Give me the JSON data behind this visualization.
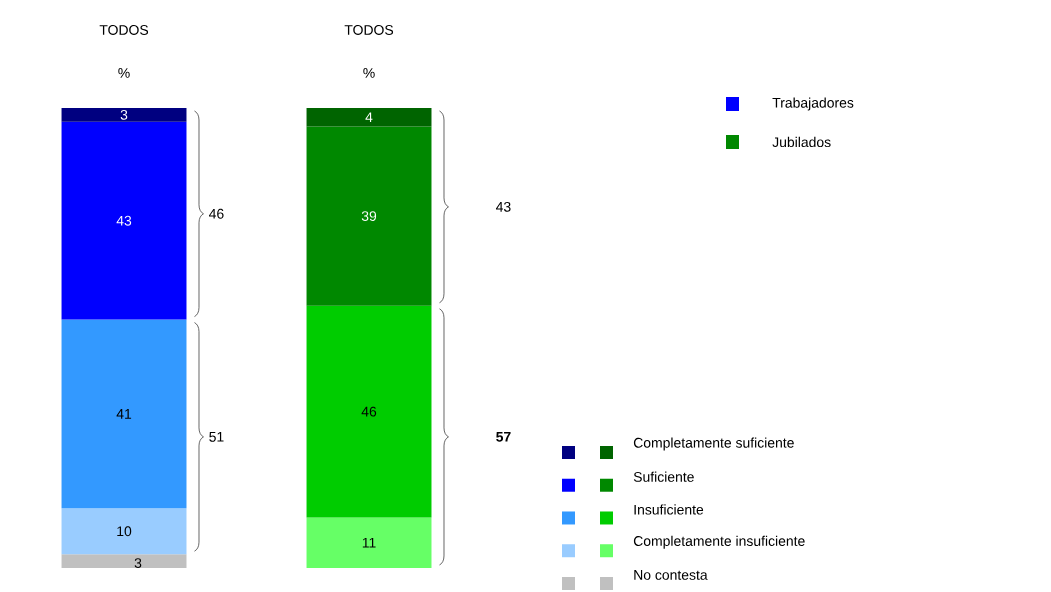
{
  "chart_data": {
    "type": "bar",
    "stacked": true,
    "data_labels": true,
    "legend": "bottom right",
    "categories": [
      "TODOS",
      "TODOS"
    ],
    "series": [
      {
        "name": "No contesta",
        "colors": [
          "#c0c0c0",
          "#c0c0c0"
        ],
        "values": [
          3,
          null
        ]
      },
      {
        "name": "Completamente insuficiente",
        "colors": [
          "#99ccff",
          "#66ff66"
        ],
        "values": [
          10,
          11
        ]
      },
      {
        "name": "Insuficiente",
        "colors": [
          "#3399ff",
          "#00cc00"
        ],
        "values": [
          41,
          46
        ]
      },
      {
        "name": "Suficiente",
        "colors": [
          "#0000ff",
          "#008800"
        ],
        "values": [
          43,
          39
        ]
      },
      {
        "name": "Completamente suficiente",
        "colors": [
          "#000080",
          "#006400"
        ],
        "values": [
          3,
          4
        ]
      }
    ],
    "annotations": [
      "%",
      "%",
      "46",
      "51",
      "43",
      "**57**",
      "Trabajadores",
      "Jubilados"
    ]
  }
}
